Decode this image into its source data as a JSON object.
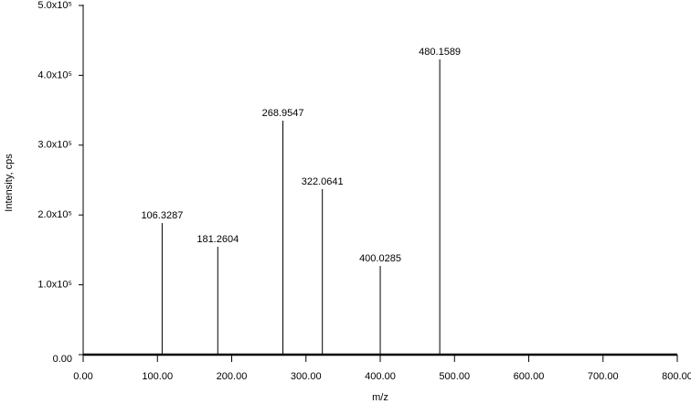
{
  "chart_data": {
    "type": "stem",
    "x_label": "m/z",
    "y_label": "Intensity, cps",
    "x": [
      106.3287,
      181.2604,
      268.9547,
      322.0641,
      400.0285,
      480.1589
    ],
    "values": [
      188500,
      154500,
      335100,
      237000,
      127000,
      422800
    ],
    "color": "#000000",
    "xlim": [
      0,
      800
    ],
    "xticks": [
      {
        "value": 0,
        "label": "0.00"
      },
      {
        "value": 100,
        "label": "100.00"
      },
      {
        "value": 200,
        "label": "200.00"
      },
      {
        "value": 300,
        "label": "300.00"
      },
      {
        "value": 400,
        "label": "400.00"
      },
      {
        "value": 500,
        "label": "500.00"
      },
      {
        "value": 600,
        "label": "600.00"
      },
      {
        "value": 700,
        "label": "700.00"
      },
      {
        "value": 800,
        "label": "800.00"
      }
    ],
    "ylim": [
      0,
      500000
    ],
    "yticks": [
      {
        "value": 0,
        "label": "0.00"
      },
      {
        "value": 100000,
        "label": "1.0x10⁵"
      },
      {
        "value": 200000,
        "label": "2.0x10⁵"
      },
      {
        "value": 300000,
        "label": "3.0x10⁵"
      },
      {
        "value": 400000,
        "label": "4.0x10⁵"
      },
      {
        "value": 500000,
        "label": "5.0x10⁵"
      }
    ]
  }
}
